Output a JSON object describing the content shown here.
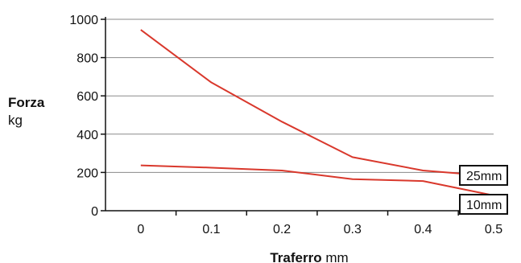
{
  "chart_data": {
    "type": "line",
    "x": [
      0,
      0.1,
      0.2,
      0.3,
      0.4,
      0.5
    ],
    "x_ticks": [
      "0",
      "0.1",
      "0.2",
      "0.3",
      "0.4",
      "0.5"
    ],
    "y_ticks": [
      "0",
      "200",
      "400",
      "600",
      "800",
      "1000"
    ],
    "xlim": [
      -0.05,
      0.5
    ],
    "ylim": [
      0,
      1000
    ],
    "xlabel_bold": "Traferro",
    "xlabel_unit": "mm",
    "ylabel_bold": "Forza",
    "ylabel_unit": "kg",
    "grid": true,
    "series": [
      {
        "name": "25mm",
        "color": "#d9382c",
        "values": [
          945,
          670,
          465,
          280,
          210,
          180
        ]
      },
      {
        "name": "10mm",
        "color": "#d9382c",
        "values": [
          237,
          225,
          210,
          165,
          155,
          80
        ]
      }
    ]
  }
}
